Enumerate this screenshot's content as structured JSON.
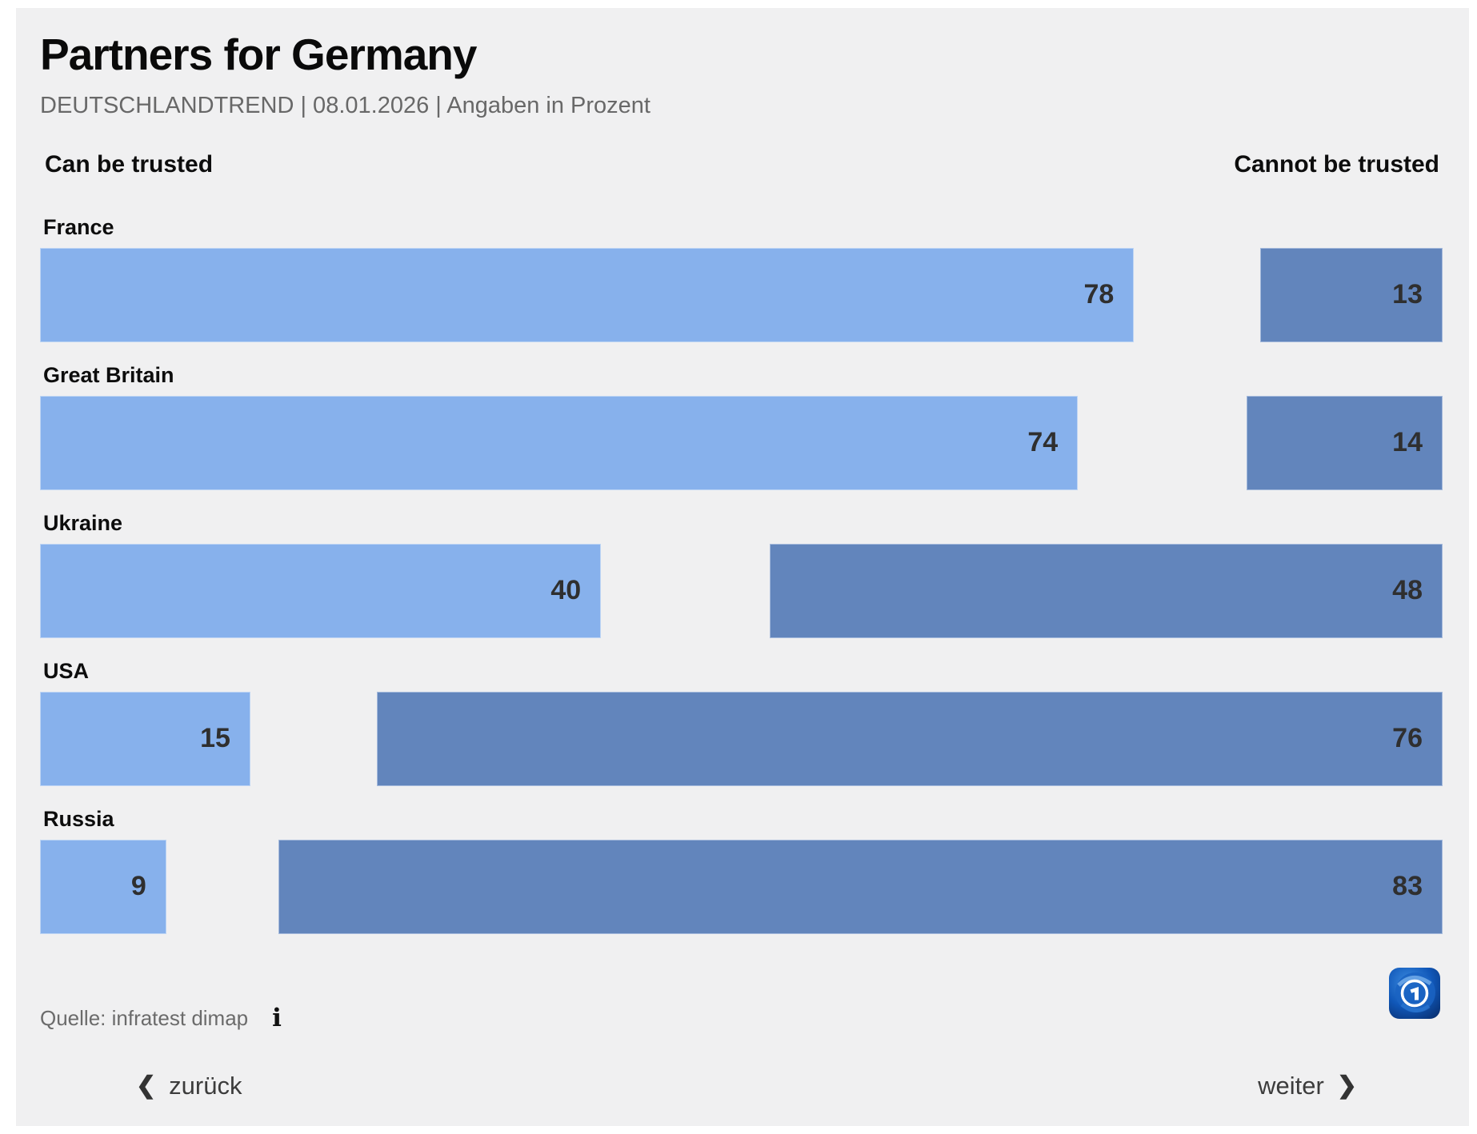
{
  "page": {
    "title": "Partners for Germany",
    "subtitle": "DEUTSCHLANDTREND | 08.01.2026 | Angaben in Prozent"
  },
  "chart_data": {
    "type": "bar",
    "orientation": "horizontal_diverging",
    "title": "Partners for Germany",
    "subtitle": "DEUTSCHLANDTREND | 08.01.2026 | Angaben in Prozent",
    "unit": "percent",
    "xlim": [
      0,
      100
    ],
    "grid": false,
    "legend_position": "column-headers",
    "categories": [
      "France",
      "Great Britain",
      "Ukraine",
      "USA",
      "Russia"
    ],
    "series": [
      {
        "name": "Can be trusted",
        "align": "left",
        "values": [
          78,
          74,
          40,
          15,
          9
        ]
      },
      {
        "name": "Cannot be trusted",
        "align": "right",
        "values": [
          13,
          14,
          48,
          76,
          83
        ]
      }
    ]
  },
  "footer": {
    "source_label": "Quelle: infratest dimap"
  },
  "nav": {
    "back_label": "zurück",
    "next_label": "weiter"
  },
  "icons": {
    "info_icon": "i",
    "back_chevron_icon": "❮",
    "next_chevron_icon": "❯",
    "ard_logo": "ard-tagesschau-globe-logo"
  },
  "colors": {
    "bar_light": "#87b1ec",
    "bar_dark": "#6285bc",
    "panel_bg": "#f0f0f1",
    "value_text": "#2f2f2f",
    "subtitle_text": "#686868",
    "logo_blue_light": "#3b8be0",
    "logo_blue_dark": "#093275"
  }
}
